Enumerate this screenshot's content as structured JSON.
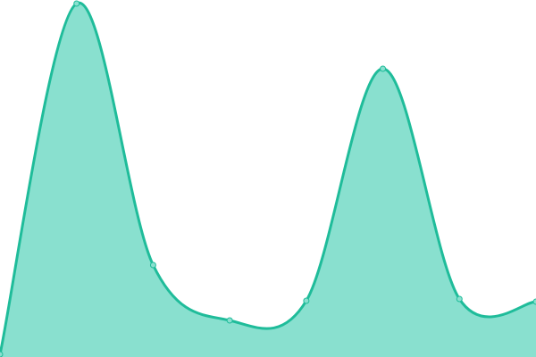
{
  "chart_data": {
    "type": "area",
    "title": "",
    "xlabel": "",
    "ylabel": "",
    "x": [
      0,
      1,
      2,
      3,
      4,
      5,
      6,
      7
    ],
    "values": [
      3,
      396,
      103,
      41,
      63,
      323,
      65,
      62
    ],
    "ylim": [
      0,
      400
    ],
    "grid": false,
    "legend": "none",
    "smooth": true,
    "colors": {
      "line": "#1fbc9a",
      "fill": "#89e0cf",
      "point_fill": "#89e0cf"
    }
  }
}
